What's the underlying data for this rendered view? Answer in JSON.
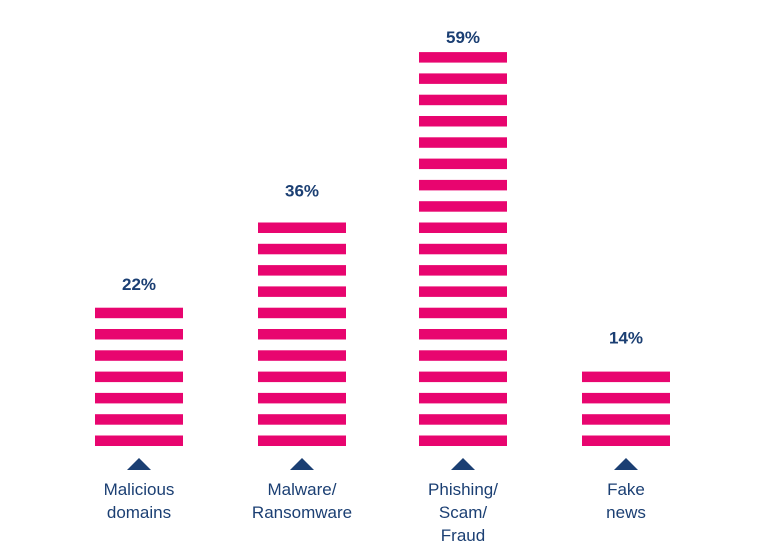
{
  "chart_data": {
    "type": "bar",
    "categories": [
      [
        "Malicious",
        "domains"
      ],
      [
        "Malware/",
        "Ransomware"
      ],
      [
        "Phishing/",
        "Scam/",
        "Fraud"
      ],
      [
        "Fake",
        "news"
      ]
    ],
    "values": [
      22,
      36,
      59,
      14
    ],
    "value_labels": [
      "22%",
      "36%",
      "59%",
      "14%"
    ],
    "title": "",
    "xlabel": "",
    "ylabel": "",
    "grid": false,
    "legend": "none"
  },
  "colors": {
    "bar": "#e8056f",
    "label": "#1b3f73",
    "marker": "#1b3f73"
  }
}
